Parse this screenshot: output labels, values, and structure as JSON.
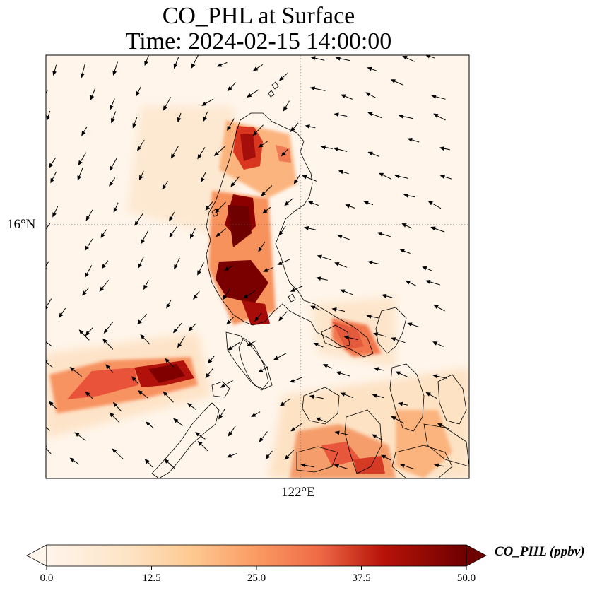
{
  "title_line1": "CO_PHL at Surface",
  "title_line2": "Time: 2024-02-15 14:00:00",
  "lat_label": "16°N",
  "lon_label": "122°E",
  "colorbar": {
    "label": "CO_PHL (ppbv)",
    "ticks": [
      "0.0",
      "12.5",
      "25.0",
      "37.5",
      "50.0"
    ],
    "min": 0,
    "max": 50,
    "extend": "both",
    "colormap": [
      "#fff5eb",
      "#fdd9a8",
      "#fdaf6a",
      "#f57a4c",
      "#c81c12",
      "#7a0000"
    ]
  },
  "map": {
    "gridlines": "dotted",
    "features": [
      "coastlines",
      "wind-vectors",
      "CO-concentration-field"
    ]
  }
}
